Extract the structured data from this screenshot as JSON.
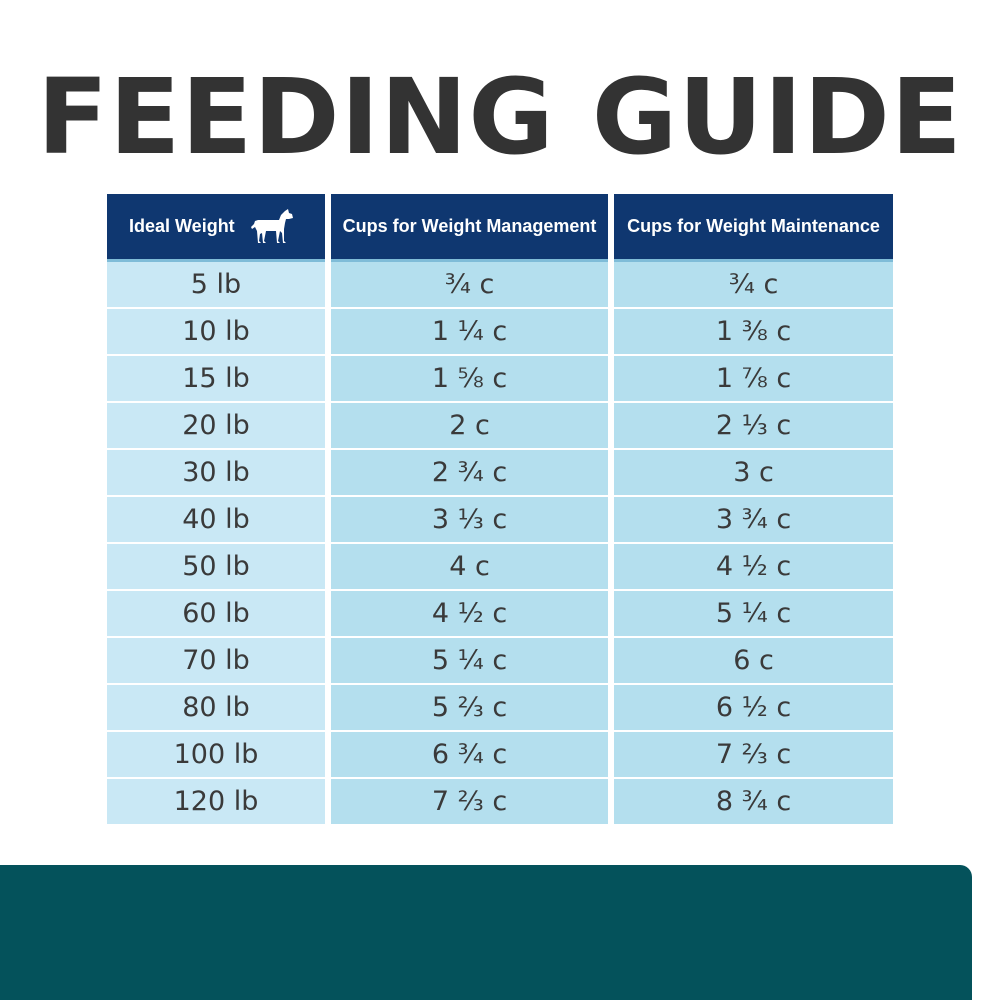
{
  "title": "FEEDING GUIDE",
  "table": {
    "headers": [
      "Ideal Weight",
      "Cups for Weight Management",
      "Cups for Weight Maintenance"
    ],
    "header_icon": "dog-icon",
    "rows": [
      [
        "5 lb",
        "¾ c",
        "¾ c"
      ],
      [
        "10 lb",
        "1 ¼ c",
        "1 ⅜ c"
      ],
      [
        "15 lb",
        "1 ⅝ c",
        "1 ⅞ c"
      ],
      [
        "20 lb",
        "2 c",
        "2 ⅓ c"
      ],
      [
        "30 lb",
        "2 ¾ c",
        "3 c"
      ],
      [
        "40 lb",
        "3 ⅓ c",
        "3 ¾ c"
      ],
      [
        "50 lb",
        "4 c",
        "4 ½ c"
      ],
      [
        "60 lb",
        "4 ½ c",
        "5 ¼ c"
      ],
      [
        "70 lb",
        "5 ¼ c",
        "6 c"
      ],
      [
        "80 lb",
        "5 ⅔ c",
        "6 ½ c"
      ],
      [
        "100 lb",
        "6 ¾ c",
        "7 ⅔ c"
      ],
      [
        "120 lb",
        "7 ⅔ c",
        "8 ¾ c"
      ]
    ]
  },
  "colors": {
    "title": "#333333",
    "header_bg": "#0f3770",
    "header_text": "#ffffff",
    "col1_bg": "#c9e8f5",
    "col_bg": "#b4dfee",
    "footer_bar": "#04525b"
  }
}
